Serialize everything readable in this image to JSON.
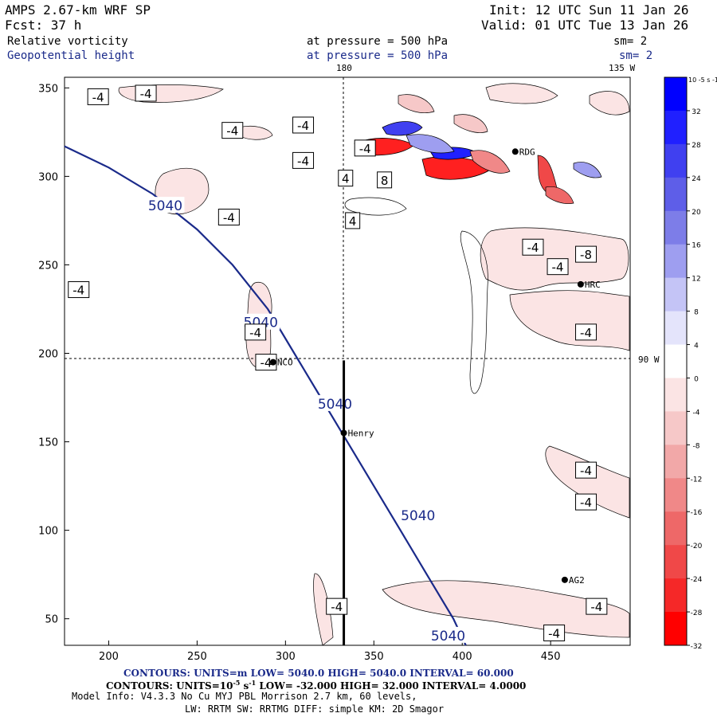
{
  "header": {
    "model": "AMPS 2.67-km WRF SP",
    "init": "Init: 12 UTC Sun 11 Jan 26",
    "fcst": "Fcst:   37 h",
    "valid": "Valid: 01 UTC Tue 13 Jan 26",
    "field1_name": "Relative vorticity",
    "field1_level": "at pressure =  500 hPa",
    "field1_sm": "sm= 2",
    "field2_name": "Geopotential height",
    "field2_level": "at pressure =  500 hPa",
    "field2_sm": "sm= 2"
  },
  "map_labels": {
    "lon_180": "180",
    "lon_135w": "135 W",
    "lat_90w": "90 W"
  },
  "stations": [
    {
      "name": "RDG",
      "x": 430,
      "y": 314
    },
    {
      "name": "HRC",
      "x": 467,
      "y": 239
    },
    {
      "name": "NCO",
      "x": 293,
      "y": 195
    },
    {
      "name": "Henry",
      "x": 333,
      "y": 155
    },
    {
      "name": "AG2",
      "x": 458,
      "y": 72
    }
  ],
  "height_contour": {
    "value": "5040",
    "label": "5040",
    "path": [
      [
        175,
        317
      ],
      [
        200,
        305
      ],
      [
        225,
        290
      ],
      [
        250,
        270
      ],
      [
        270,
        250
      ],
      [
        290,
        225
      ],
      [
        305,
        200
      ],
      [
        320,
        175
      ],
      [
        335,
        150
      ],
      [
        350,
        125
      ],
      [
        365,
        100
      ],
      [
        380,
        75
      ],
      [
        395,
        50
      ],
      [
        402,
        35
      ]
    ],
    "label_points": [
      [
        232,
        283
      ],
      [
        286,
        217
      ],
      [
        328,
        171
      ],
      [
        375,
        108
      ],
      [
        392,
        40
      ]
    ]
  },
  "vorticity_labels": [
    {
      "text": "-4",
      "x": 194,
      "y": 345
    },
    {
      "text": "-4",
      "x": 221,
      "y": 347
    },
    {
      "text": "-4",
      "x": 310,
      "y": 329
    },
    {
      "text": "-4",
      "x": 270,
      "y": 326
    },
    {
      "text": "-4",
      "x": 310,
      "y": 309
    },
    {
      "text": "-4",
      "x": 345,
      "y": 316
    },
    {
      "text": "4",
      "x": 334,
      "y": 299
    },
    {
      "text": "4",
      "x": 338,
      "y": 275
    },
    {
      "text": "8",
      "x": 356,
      "y": 298
    },
    {
      "text": "-4",
      "x": 268,
      "y": 277
    },
    {
      "text": "-4",
      "x": 440,
      "y": 260
    },
    {
      "text": "-4",
      "x": 454,
      "y": 249
    },
    {
      "text": "-8",
      "x": 470,
      "y": 256
    },
    {
      "text": "-4",
      "x": 183,
      "y": 236
    },
    {
      "text": "-4",
      "x": 283,
      "y": 212
    },
    {
      "text": "-4",
      "x": 289,
      "y": 195
    },
    {
      "text": "-4",
      "x": 470,
      "y": 212
    },
    {
      "text": "-4",
      "x": 470,
      "y": 134
    },
    {
      "text": "-4",
      "x": 470,
      "y": 116
    },
    {
      "text": "-4",
      "x": 329,
      "y": 57
    },
    {
      "text": "-4",
      "x": 476,
      "y": 57
    },
    {
      "text": "-4",
      "x": 452,
      "y": 42
    }
  ],
  "chart_data": {
    "type": "map",
    "x_axis": {
      "range": [
        175,
        495
      ],
      "ticks": [
        200,
        250,
        300,
        350,
        400,
        450
      ]
    },
    "y_axis": {
      "range": [
        35,
        356
      ],
      "ticks": [
        50,
        100,
        150,
        200,
        250,
        300,
        350
      ]
    },
    "colorbar": {
      "units_label": "10",
      "units_exp": "-5",
      "units_suffix": "s",
      "units_suffix_exp": "-1",
      "ticks": [
        32,
        28,
        24,
        20,
        16,
        12,
        8,
        4,
        0,
        -4,
        -8,
        -12,
        -16,
        -20,
        -24,
        -28,
        -32
      ],
      "colors": [
        "#0000ff",
        "#2020ff",
        "#4040f0",
        "#5e5ee8",
        "#7d7de8",
        "#9e9ef0",
        "#c4c4f6",
        "#e4e4fb",
        "#ffffff",
        "#fbe4e4",
        "#f6c8c8",
        "#f2a8a8",
        "#f08888",
        "#ee6868",
        "#f04848",
        "#f52828",
        "#ff0000"
      ]
    },
    "section_line": {
      "x": 333,
      "y_start": 35,
      "y_end": 196
    },
    "crosshair": {
      "x": 333,
      "y": 196
    }
  },
  "footer": {
    "line1": "CONTOURS:  UNITS=m  LOW=  5040.0      HIGH=  5040.0      INTERVAL=   60.000",
    "line2_a": "CONTOURS:  UNITS=10",
    "line2_exp": "-5",
    "line2_b": " s",
    "line2_exp2": "-1",
    "line2_c": "  LOW=  -32.000      HIGH=  32.000      INTERVAL=   4.0000",
    "line3": "Model Info: V4.3.3    No Cu    MYJ PBL  Morrison           2.7 km,  60 levels,",
    "line4": "LW: RRTM SW: RRTMG   DIFF: simple KM: 2D Smagor"
  }
}
